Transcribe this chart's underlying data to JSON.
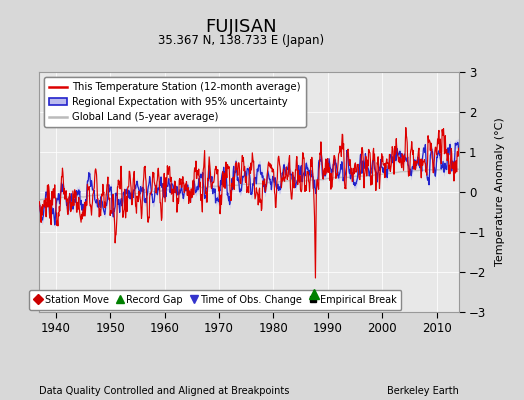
{
  "title": "FUJISAN",
  "subtitle": "35.367 N, 138.733 E (Japan)",
  "xlabel_left": "Data Quality Controlled and Aligned at Breakpoints",
  "xlabel_right": "Berkeley Earth",
  "ylabel": "Temperature Anomaly (°C)",
  "year_start": 1937,
  "year_end": 2014,
  "xlim": [
    1937,
    2014
  ],
  "ylim": [
    -3,
    3
  ],
  "yticks": [
    -3,
    -2,
    -1,
    0,
    1,
    2,
    3
  ],
  "xticks": [
    1940,
    1950,
    1960,
    1970,
    1980,
    1990,
    2000,
    2010
  ],
  "bg_color": "#d8d8d8",
  "plot_bg_color": "#e8e8e8",
  "station_color": "#dd0000",
  "regional_color": "#2222cc",
  "regional_fill_color": "#bbbbee",
  "global_color": "#bbbbbb",
  "record_gap_x": 1987.5,
  "record_gap_y": -2.55,
  "dip_year": 1987.7,
  "dip_value": -2.15,
  "seed": 42
}
